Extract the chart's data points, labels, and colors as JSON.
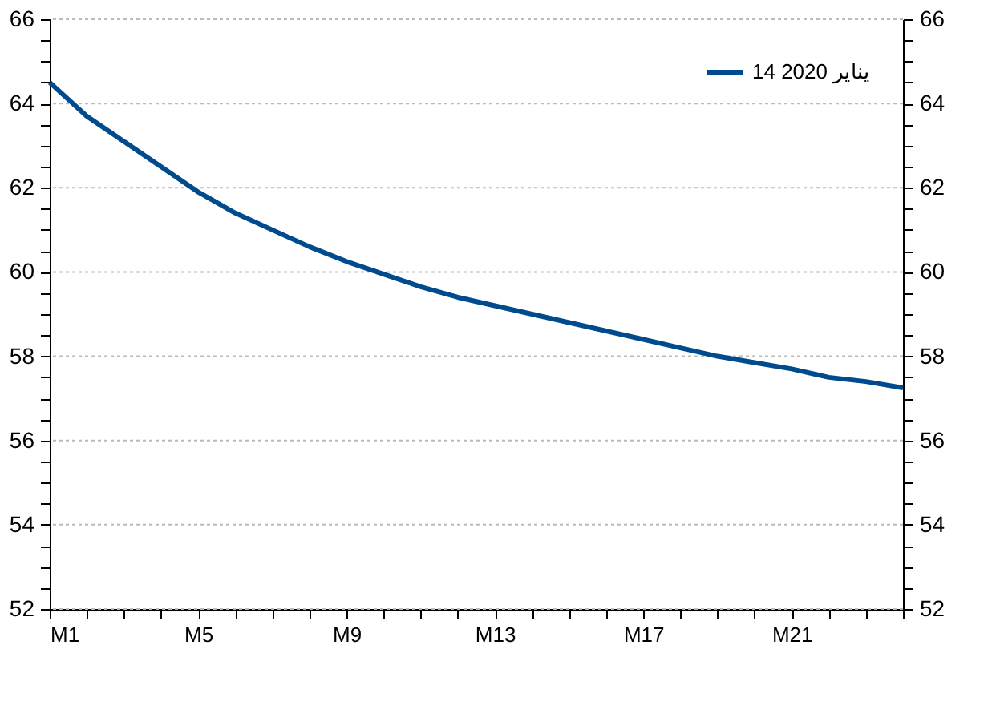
{
  "chart_data": {
    "type": "line",
    "categories": [
      "M1",
      null,
      null,
      null,
      "M5",
      null,
      null,
      null,
      "M9",
      null,
      null,
      null,
      "M13",
      null,
      null,
      null,
      "M17",
      null,
      null,
      null,
      "M21",
      null,
      null,
      null
    ],
    "series": [
      {
        "name": "14 يناير 2020",
        "color": "#004b8d",
        "values": [
          64.5,
          63.7,
          63.1,
          62.5,
          61.9,
          61.4,
          61.0,
          60.6,
          60.25,
          59.95,
          59.65,
          59.4,
          59.2,
          59.0,
          58.8,
          58.6,
          58.4,
          58.2,
          58.0,
          57.85,
          57.7,
          57.5,
          57.4,
          57.25
        ]
      }
    ],
    "ylim": [
      52,
      66
    ],
    "yticks": [
      52,
      {
        "value": 52.5,
        "label": null
      },
      {
        "value": 53,
        "label": null
      },
      {
        "value": 53.5,
        "label": null
      },
      54,
      {
        "value": 54.5,
        "label": null
      },
      {
        "value": 55,
        "label": null
      },
      {
        "value": 55.5,
        "label": null
      },
      56,
      {
        "value": 56.5,
        "label": null
      },
      {
        "value": 57,
        "label": null
      },
      {
        "value": 57.5,
        "label": null
      },
      58,
      {
        "value": 58.5,
        "label": null
      },
      {
        "value": 59,
        "label": null
      },
      {
        "value": 59.5,
        "label": null
      },
      60,
      {
        "value": 60.5,
        "label": null
      },
      {
        "value": 61,
        "label": null
      },
      {
        "value": 61.5,
        "label": null
      },
      62,
      {
        "value": 62.5,
        "label": null
      },
      {
        "value": 63,
        "label": null
      },
      {
        "value": 63.5,
        "label": null
      },
      64,
      {
        "value": 64.5,
        "label": null
      },
      {
        "value": 65,
        "label": null
      },
      {
        "value": 65.5,
        "label": null
      },
      66
    ],
    "y2lim": [
      52,
      66
    ],
    "y2ticks": [
      52,
      {
        "value": 52.5,
        "label": null
      },
      {
        "value": 53,
        "label": null
      },
      {
        "value": 53.5,
        "label": null
      },
      54,
      {
        "value": 54.5,
        "label": null
      },
      {
        "value": 55,
        "label": null
      },
      {
        "value": 55.5,
        "label": null
      },
      56,
      {
        "value": 56.5,
        "label": null
      },
      {
        "value": 57,
        "label": null
      },
      {
        "value": 57.5,
        "label": null
      },
      58,
      {
        "value": 58.5,
        "label": null
      },
      {
        "value": 59,
        "label": null
      },
      {
        "value": 59.5,
        "label": null
      },
      60,
      {
        "value": 60.5,
        "label": null
      },
      {
        "value": 61,
        "label": null
      },
      {
        "value": 61.5,
        "label": null
      },
      62,
      {
        "value": 62.5,
        "label": null
      },
      {
        "value": 63,
        "label": null
      },
      {
        "value": 63.5,
        "label": null
      },
      64,
      {
        "value": 64.5,
        "label": null
      },
      {
        "value": 65,
        "label": null
      },
      {
        "value": 65.5,
        "label": null
      },
      66
    ],
    "grid": "y",
    "legend": "top right",
    "line_style": "solid"
  }
}
